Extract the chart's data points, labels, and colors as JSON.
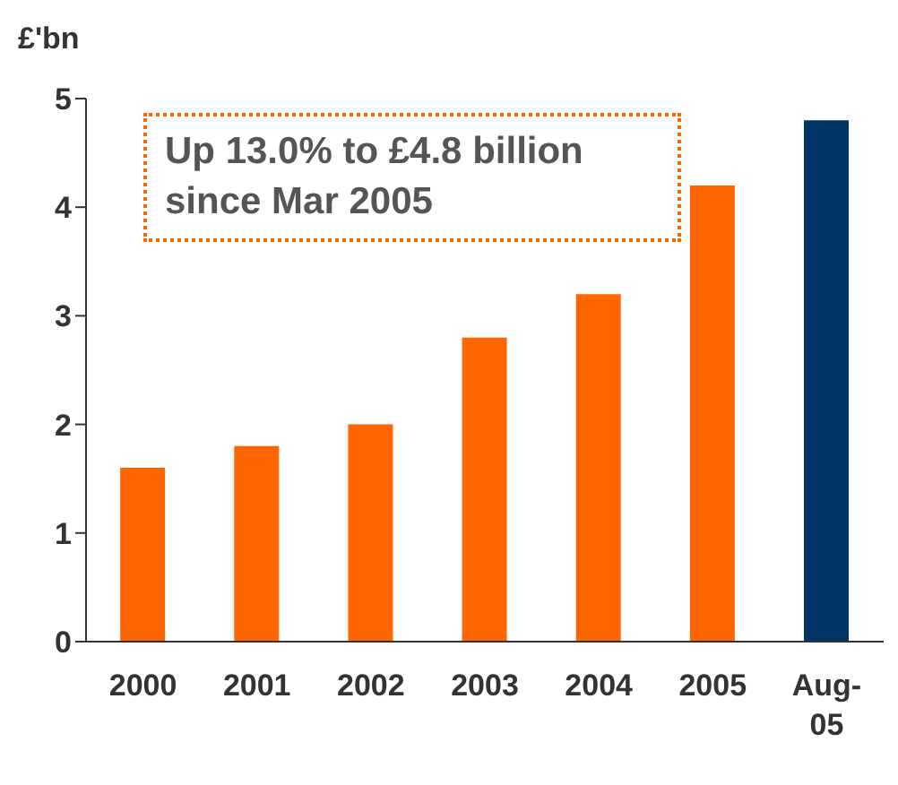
{
  "chart_data": {
    "type": "bar",
    "ylabel": "£'bn",
    "categories": [
      "2000",
      "2001",
      "2002",
      "2003",
      "2004",
      "2005",
      "Aug-05"
    ],
    "values": [
      1.6,
      1.8,
      2.0,
      2.8,
      3.2,
      4.2,
      4.8
    ],
    "colors": [
      "#ff6600",
      "#ff6600",
      "#ff6600",
      "#ff6600",
      "#ff6600",
      "#ff6600",
      "#003366"
    ],
    "ylim": [
      0,
      5
    ],
    "yticks": [
      0,
      1,
      2,
      3,
      4,
      5
    ],
    "annotations": [
      "Up 13.0% to £4.8 billion since Mar 2005"
    ]
  }
}
